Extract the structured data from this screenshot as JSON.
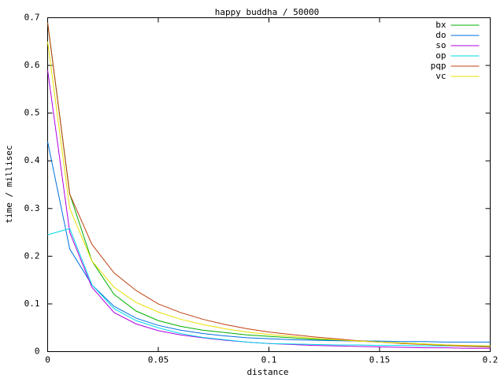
{
  "chart_data": {
    "type": "line",
    "title": "happy buddha / 50000",
    "x_label": "distance",
    "y_label": "time / millisec",
    "x": [
      0,
      0.01,
      0.02,
      0.03,
      0.04,
      0.05,
      0.06,
      0.07,
      0.08,
      0.09,
      0.1,
      0.11,
      0.12,
      0.13,
      0.14,
      0.15,
      0.16,
      0.17,
      0.18,
      0.19,
      0.2
    ],
    "xlim": [
      0,
      0.2
    ],
    "xticks": [
      0,
      0.05,
      0.1,
      0.15,
      0.2
    ],
    "ylim": [
      0,
      0.7
    ],
    "yticks": [
      0,
      0.1,
      0.2,
      0.3,
      0.4,
      0.5,
      0.6,
      0.7
    ],
    "grid": false,
    "legend": "top-right",
    "series": [
      {
        "name": "bx",
        "color": "#00b000",
        "values": [
          0.69,
          0.33,
          0.19,
          0.12,
          0.085,
          0.065,
          0.053,
          0.045,
          0.04,
          0.035,
          0.032,
          0.029,
          0.026,
          0.024,
          0.022,
          0.02,
          0.018,
          0.016,
          0.014,
          0.012,
          0.01
        ]
      },
      {
        "name": "do",
        "color": "#0070e0",
        "values": [
          0.44,
          0.215,
          0.14,
          0.095,
          0.07,
          0.055,
          0.045,
          0.038,
          0.033,
          0.029,
          0.027,
          0.025,
          0.024,
          0.023,
          0.022,
          0.022,
          0.021,
          0.021,
          0.02,
          0.02,
          0.02
        ]
      },
      {
        "name": "so",
        "color": "#b000e0",
        "values": [
          0.59,
          0.25,
          0.135,
          0.082,
          0.058,
          0.044,
          0.035,
          0.029,
          0.024,
          0.02,
          0.017,
          0.015,
          0.013,
          0.012,
          0.011,
          0.01,
          0.009,
          0.008,
          0.008,
          0.007,
          0.007
        ]
      },
      {
        "name": "op",
        "color": "#00d8e8",
        "values": [
          0.245,
          0.258,
          0.14,
          0.09,
          0.065,
          0.05,
          0.038,
          0.03,
          0.025,
          0.02,
          0.017,
          0.016,
          0.015,
          0.014,
          0.014,
          0.013,
          0.013,
          0.012,
          0.012,
          0.012,
          0.012
        ]
      },
      {
        "name": "pqp",
        "color": "#c04010",
        "values": [
          0.69,
          0.33,
          0.225,
          0.165,
          0.128,
          0.1,
          0.082,
          0.068,
          0.057,
          0.048,
          0.041,
          0.036,
          0.031,
          0.027,
          0.023,
          0.02,
          0.017,
          0.015,
          0.013,
          0.011,
          0.01
        ]
      },
      {
        "name": "vc",
        "color": "#e8e000",
        "values": [
          0.65,
          0.3,
          0.19,
          0.135,
          0.103,
          0.083,
          0.068,
          0.057,
          0.048,
          0.041,
          0.036,
          0.032,
          0.028,
          0.025,
          0.022,
          0.02,
          0.018,
          0.016,
          0.014,
          0.013,
          0.012
        ]
      }
    ]
  }
}
